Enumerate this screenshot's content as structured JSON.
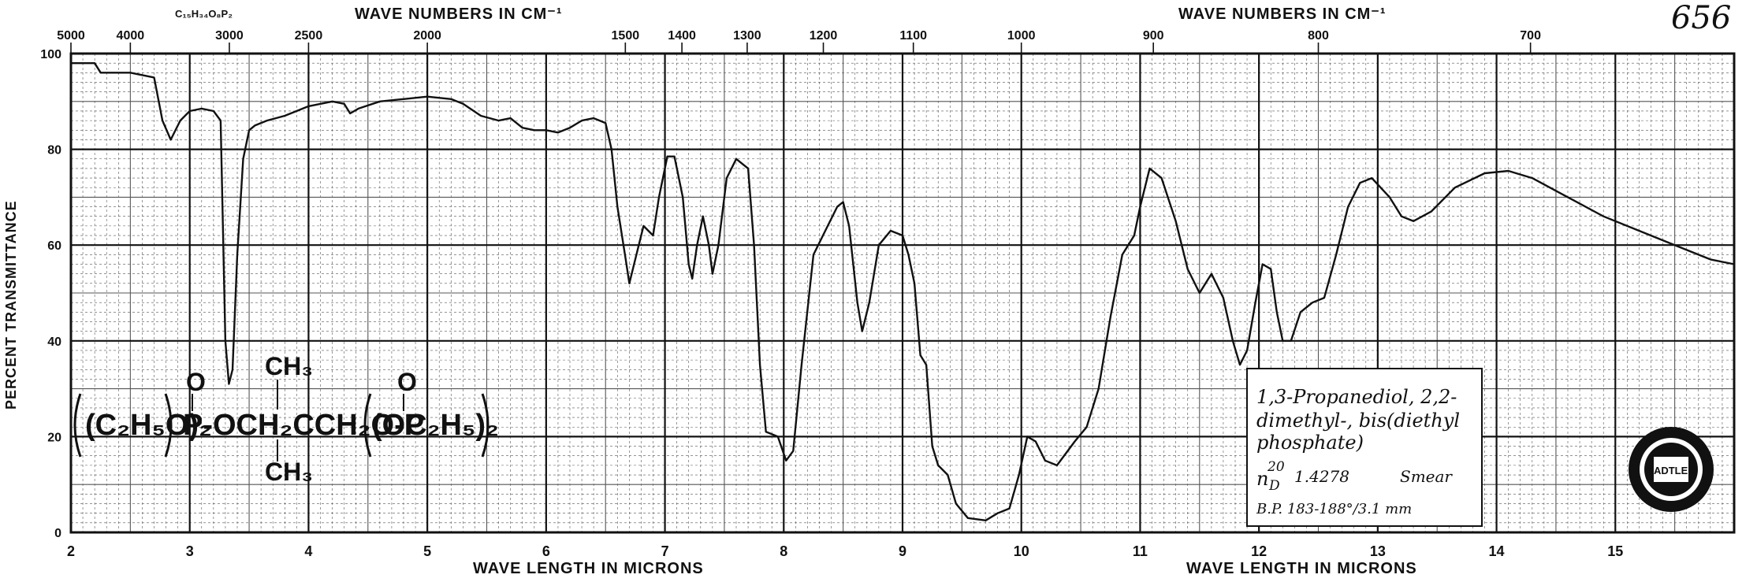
{
  "page_number": "656",
  "formula": "C₁₅H₃₄O₈P₂",
  "chart_data": {
    "type": "line",
    "x_unit": "microns",
    "xlim": [
      2,
      16
    ],
    "ylim": [
      0,
      100
    ],
    "ylabel": "PERCENT TRANSMITTANCE",
    "xlabel_left": "WAVE LENGTH IN MICRONS",
    "xlabel_right": "WAVE LENGTH IN MICRONS",
    "top_label_left": "WAVE NUMBERS IN CM⁻¹",
    "top_label_right": "WAVE NUMBERS IN CM⁻¹",
    "grid": true,
    "x_ticks": [
      2,
      3,
      4,
      5,
      6,
      7,
      8,
      9,
      10,
      11,
      12,
      13,
      14,
      15
    ],
    "x_tick_labels": [
      "2",
      "3",
      "4",
      "5",
      "6",
      "7",
      "8",
      "9",
      "10",
      "11",
      "12",
      "13",
      "14",
      "15"
    ],
    "y_ticks": [
      0,
      20,
      40,
      60,
      80,
      100
    ],
    "y_tick_labels": [
      "0",
      "20",
      "40",
      "60",
      "80",
      "100"
    ],
    "wavenumber_ticks": [
      5000,
      4000,
      3000,
      2500,
      2000,
      1500,
      1400,
      1300,
      1200,
      1100,
      1000,
      900,
      800,
      700
    ],
    "wavenumber_tick_labels": [
      "5000",
      "4000",
      "3000",
      "2500",
      "2000",
      "1500",
      "1400",
      "1300",
      "1200",
      "1100",
      "1000",
      "900",
      "800",
      "700"
    ],
    "series": [
      {
        "color": "#111111",
        "points": [
          [
            2.0,
            98
          ],
          [
            2.2,
            98
          ],
          [
            2.25,
            96
          ],
          [
            2.5,
            96
          ],
          [
            2.7,
            95
          ],
          [
            2.77,
            86
          ],
          [
            2.84,
            82
          ],
          [
            2.92,
            86
          ],
          [
            3.0,
            88
          ],
          [
            3.1,
            88.5
          ],
          [
            3.2,
            88
          ],
          [
            3.26,
            86
          ],
          [
            3.3,
            40
          ],
          [
            3.33,
            31
          ],
          [
            3.36,
            34
          ],
          [
            3.4,
            58
          ],
          [
            3.45,
            78
          ],
          [
            3.5,
            84
          ],
          [
            3.55,
            85
          ],
          [
            3.65,
            86
          ],
          [
            3.8,
            87
          ],
          [
            4.0,
            89
          ],
          [
            4.2,
            90
          ],
          [
            4.3,
            89.5
          ],
          [
            4.35,
            87.5
          ],
          [
            4.42,
            88.5
          ],
          [
            4.6,
            90
          ],
          [
            4.8,
            90.5
          ],
          [
            5.0,
            91
          ],
          [
            5.2,
            90.5
          ],
          [
            5.3,
            89.5
          ],
          [
            5.45,
            87
          ],
          [
            5.6,
            86
          ],
          [
            5.7,
            86.5
          ],
          [
            5.8,
            84.5
          ],
          [
            5.9,
            84
          ],
          [
            6.0,
            84
          ],
          [
            6.1,
            83.5
          ],
          [
            6.2,
            84.5
          ],
          [
            6.3,
            86
          ],
          [
            6.4,
            86.5
          ],
          [
            6.5,
            85.5
          ],
          [
            6.55,
            80
          ],
          [
            6.6,
            68
          ],
          [
            6.67,
            57
          ],
          [
            6.7,
            52
          ],
          [
            6.75,
            57
          ],
          [
            6.82,
            64
          ],
          [
            6.9,
            62
          ],
          [
            6.95,
            70
          ],
          [
            7.02,
            78.5
          ],
          [
            7.08,
            78.5
          ],
          [
            7.15,
            70
          ],
          [
            7.2,
            56
          ],
          [
            7.23,
            53
          ],
          [
            7.27,
            60
          ],
          [
            7.32,
            66
          ],
          [
            7.37,
            60
          ],
          [
            7.4,
            54
          ],
          [
            7.45,
            60
          ],
          [
            7.52,
            74
          ],
          [
            7.6,
            78
          ],
          [
            7.7,
            76
          ],
          [
            7.75,
            60
          ],
          [
            7.8,
            35
          ],
          [
            7.85,
            21
          ],
          [
            7.95,
            20
          ],
          [
            8.02,
            15
          ],
          [
            8.08,
            17
          ],
          [
            8.15,
            35
          ],
          [
            8.25,
            58
          ],
          [
            8.35,
            63
          ],
          [
            8.45,
            68
          ],
          [
            8.5,
            69
          ],
          [
            8.55,
            64
          ],
          [
            8.62,
            48
          ],
          [
            8.66,
            42
          ],
          [
            8.72,
            48
          ],
          [
            8.8,
            60
          ],
          [
            8.9,
            63
          ],
          [
            9.0,
            62
          ],
          [
            9.05,
            58
          ],
          [
            9.1,
            52
          ],
          [
            9.15,
            37
          ],
          [
            9.2,
            35
          ],
          [
            9.25,
            18
          ],
          [
            9.3,
            14
          ],
          [
            9.38,
            12
          ],
          [
            9.45,
            6
          ],
          [
            9.55,
            3
          ],
          [
            9.7,
            2.5
          ],
          [
            9.8,
            4
          ],
          [
            9.9,
            5
          ],
          [
            9.98,
            12
          ],
          [
            10.05,
            20
          ],
          [
            10.12,
            19
          ],
          [
            10.2,
            15
          ],
          [
            10.3,
            14
          ],
          [
            10.45,
            19
          ],
          [
            10.55,
            22
          ],
          [
            10.65,
            30
          ],
          [
            10.75,
            45
          ],
          [
            10.85,
            58
          ],
          [
            10.95,
            62
          ],
          [
            11.0,
            68
          ],
          [
            11.08,
            76
          ],
          [
            11.18,
            74
          ],
          [
            11.3,
            65
          ],
          [
            11.4,
            55
          ],
          [
            11.5,
            50
          ],
          [
            11.6,
            54
          ],
          [
            11.7,
            49
          ],
          [
            11.78,
            40
          ],
          [
            11.84,
            35
          ],
          [
            11.9,
            38
          ],
          [
            11.97,
            48
          ],
          [
            12.03,
            56
          ],
          [
            12.1,
            55
          ],
          [
            12.15,
            46
          ],
          [
            12.2,
            40
          ],
          [
            12.27,
            40
          ],
          [
            12.35,
            46
          ],
          [
            12.45,
            48
          ],
          [
            12.55,
            49
          ],
          [
            12.65,
            58
          ],
          [
            12.75,
            68
          ],
          [
            12.85,
            73
          ],
          [
            12.95,
            74
          ],
          [
            13.1,
            70
          ],
          [
            13.2,
            66
          ],
          [
            13.3,
            65
          ],
          [
            13.45,
            67
          ],
          [
            13.65,
            72
          ],
          [
            13.9,
            75
          ],
          [
            14.1,
            75.5
          ],
          [
            14.3,
            74
          ],
          [
            14.6,
            70
          ],
          [
            14.9,
            66
          ],
          [
            15.2,
            63
          ],
          [
            15.5,
            60
          ],
          [
            15.8,
            57
          ],
          [
            16.0,
            56
          ]
        ]
      }
    ]
  },
  "annotation": {
    "line1": "1,3-Propanediol, 2,2-",
    "line2": "dimethyl-, bis(diethyl",
    "line3": "phosphate)",
    "refractive_index": "n",
    "refractive_sup": "20",
    "refractive_sub": "D",
    "refractive_value": "1.4278",
    "sample": "Smear",
    "boiling_point": "B.P. 183-188°/3.1 mm"
  },
  "structure": {
    "left_group": "(C₂H₅O)₂",
    "center": "P-OCH₂CCH₂O-P",
    "right_group": "(OC₂H₅)₂",
    "oxygen_left": "O",
    "oxygen_right": "O",
    "methyl_top": "CH₃",
    "methyl_bottom": "CH₃"
  },
  "logo_text": "SADTLER"
}
